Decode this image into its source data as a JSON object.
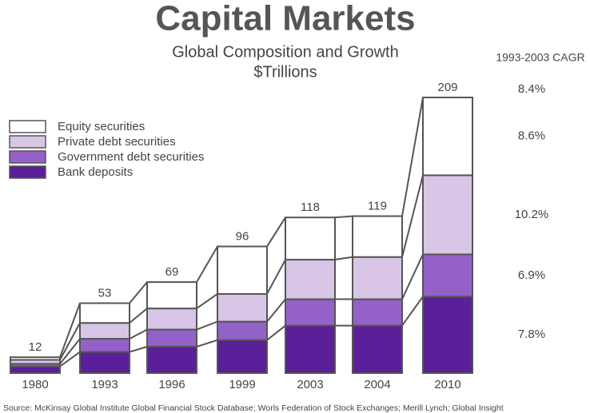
{
  "chart_data": {
    "type": "stacked-bar",
    "title": "Capital Markets",
    "subtitle": [
      "Global Composition and Growth",
      "$Trillions"
    ],
    "categories": [
      "1980",
      "1993",
      "1996",
      "1999",
      "2003",
      "2004",
      "2010"
    ],
    "totals": [
      12,
      53,
      69,
      96,
      118,
      119,
      209
    ],
    "cagr_title": "1993-2003 CAGR",
    "total_cagr": {
      "value": 8.4,
      "label": "8.4%"
    },
    "series": [
      {
        "name": "Equity securities",
        "color": "#ffffff",
        "values": [
          2,
          15,
          20,
          36,
          32,
          31,
          59
        ],
        "cagr": {
          "value": 8.6,
          "label": "8.6%"
        }
      },
      {
        "name": "Private debt securities",
        "color": "#d9c6e6",
        "values": [
          3,
          12,
          16,
          21,
          30,
          32,
          60
        ],
        "cagr": {
          "value": 10.2,
          "label": "10.2%"
        }
      },
      {
        "name": "Government debt securities",
        "color": "#9461c9",
        "values": [
          2,
          10,
          13,
          14,
          20,
          20,
          32
        ],
        "cagr": {
          "value": 6.9,
          "label": "6.9%"
        }
      },
      {
        "name": "Bank deposits",
        "color": "#5b1f9a",
        "values": [
          5,
          16,
          20,
          25,
          36,
          36,
          58
        ],
        "cagr": {
          "value": 7.8,
          "label": "7.8%"
        }
      }
    ],
    "source": "Source: McKinsay Global Institute Global Financial Stock Database; Worls Federation of Stock Exchanges; Merill Lynch; Global Insight"
  }
}
